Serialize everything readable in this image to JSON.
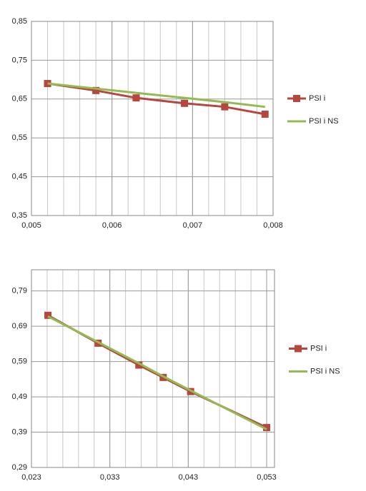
{
  "chart_data": [
    {
      "type": "line",
      "xlim": [
        0.005,
        0.008
      ],
      "xticks": [
        {
          "value": 0.005,
          "label": "0,005"
        },
        {
          "value": 0.006,
          "label": "0,006"
        },
        {
          "value": 0.007,
          "label": "0,007"
        },
        {
          "value": 0.008,
          "label": "0,008"
        }
      ],
      "ylim": [
        0.35,
        0.85
      ],
      "yticks": [
        {
          "value": 0.35,
          "label": "0,35"
        },
        {
          "value": 0.45,
          "label": "0,45"
        },
        {
          "value": 0.55,
          "label": "0,55"
        },
        {
          "value": 0.65,
          "label": "0,65"
        },
        {
          "value": 0.75,
          "label": "0,75"
        },
        {
          "value": 0.85,
          "label": "0,85"
        }
      ],
      "grid": true,
      "legend": "right",
      "series": [
        {
          "name": "PSI i",
          "color": "#b5473f",
          "marker": "square",
          "x": [
            0.0052,
            0.0058,
            0.0063,
            0.0069,
            0.0074,
            0.0079
          ],
          "values": [
            0.69,
            0.672,
            0.653,
            0.639,
            0.63,
            0.611
          ]
        },
        {
          "name": "PSI i NS",
          "color": "#93bb52",
          "x": [
            0.0052,
            0.0058,
            0.0063,
            0.0069,
            0.0074,
            0.0079
          ],
          "values": [
            0.69,
            0.677,
            0.666,
            0.653,
            0.642,
            0.63
          ]
        }
      ]
    },
    {
      "type": "line",
      "xlim": [
        0.023,
        0.054
      ],
      "xticks": [
        {
          "value": 0.023,
          "label": "0,023"
        },
        {
          "value": 0.033,
          "label": "0,033"
        },
        {
          "value": 0.043,
          "label": "0,043"
        },
        {
          "value": 0.053,
          "label": "0,053"
        }
      ],
      "ylim": [
        0.29,
        0.85
      ],
      "yticks": [
        {
          "value": 0.29,
          "label": "0,29"
        },
        {
          "value": 0.39,
          "label": "0,39"
        },
        {
          "value": 0.49,
          "label": "0,49"
        },
        {
          "value": 0.59,
          "label": "0,59"
        },
        {
          "value": 0.69,
          "label": "0,69"
        },
        {
          "value": 0.79,
          "label": "0,79"
        }
      ],
      "grid": true,
      "legend": "right",
      "series": [
        {
          "name": "PSI i",
          "color": "#b5473f",
          "marker": "square",
          "x": [
            0.0251,
            0.0315,
            0.0367,
            0.0398,
            0.0433,
            0.053
          ],
          "values": [
            0.721,
            0.642,
            0.58,
            0.545,
            0.505,
            0.403
          ]
        },
        {
          "name": "PSI i NS",
          "color": "#93bb52",
          "x": [
            0.0251,
            0.0315,
            0.0367,
            0.0398,
            0.0433,
            0.053
          ],
          "values": [
            0.718,
            0.645,
            0.585,
            0.548,
            0.508,
            0.398
          ]
        }
      ]
    }
  ]
}
